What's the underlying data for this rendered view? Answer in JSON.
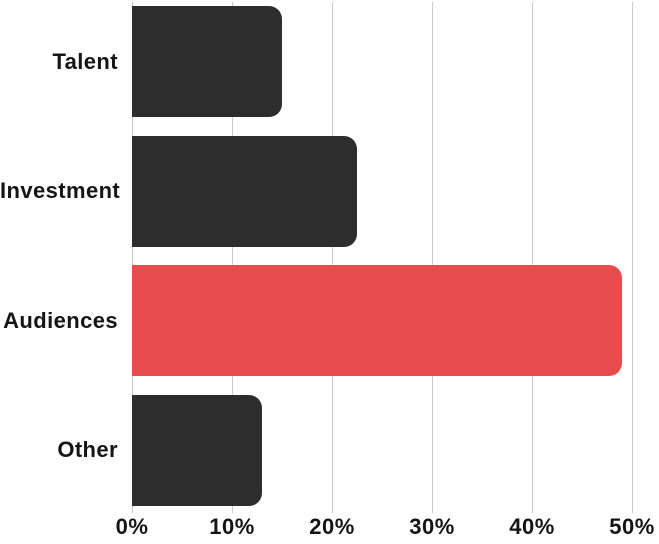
{
  "chart_data": {
    "type": "bar",
    "orientation": "horizontal",
    "title": "",
    "xlabel": "",
    "ylabel": "",
    "categories": [
      "Talent",
      "Investment",
      "Audiences",
      "Other"
    ],
    "values": [
      15,
      22.5,
      49,
      13
    ],
    "value_unit": "%",
    "highlight_index": 2,
    "x_ticks": [
      {
        "label": "0%",
        "value": 0
      },
      {
        "label": "10%",
        "value": 10
      },
      {
        "label": "20%",
        "value": 20
      },
      {
        "label": "30%",
        "value": 30
      },
      {
        "label": "40%",
        "value": 40
      },
      {
        "label": "50%",
        "value": 50
      }
    ],
    "xlim": [
      0,
      52.7
    ],
    "grid": "vertical",
    "legend": "none",
    "colors": {
      "bar_default": "#2D2D2D",
      "bar_highlight": "#E84B4B",
      "gridline": "#C9C9C9",
      "text": "#151515",
      "background": "#FFFFFF"
    }
  }
}
